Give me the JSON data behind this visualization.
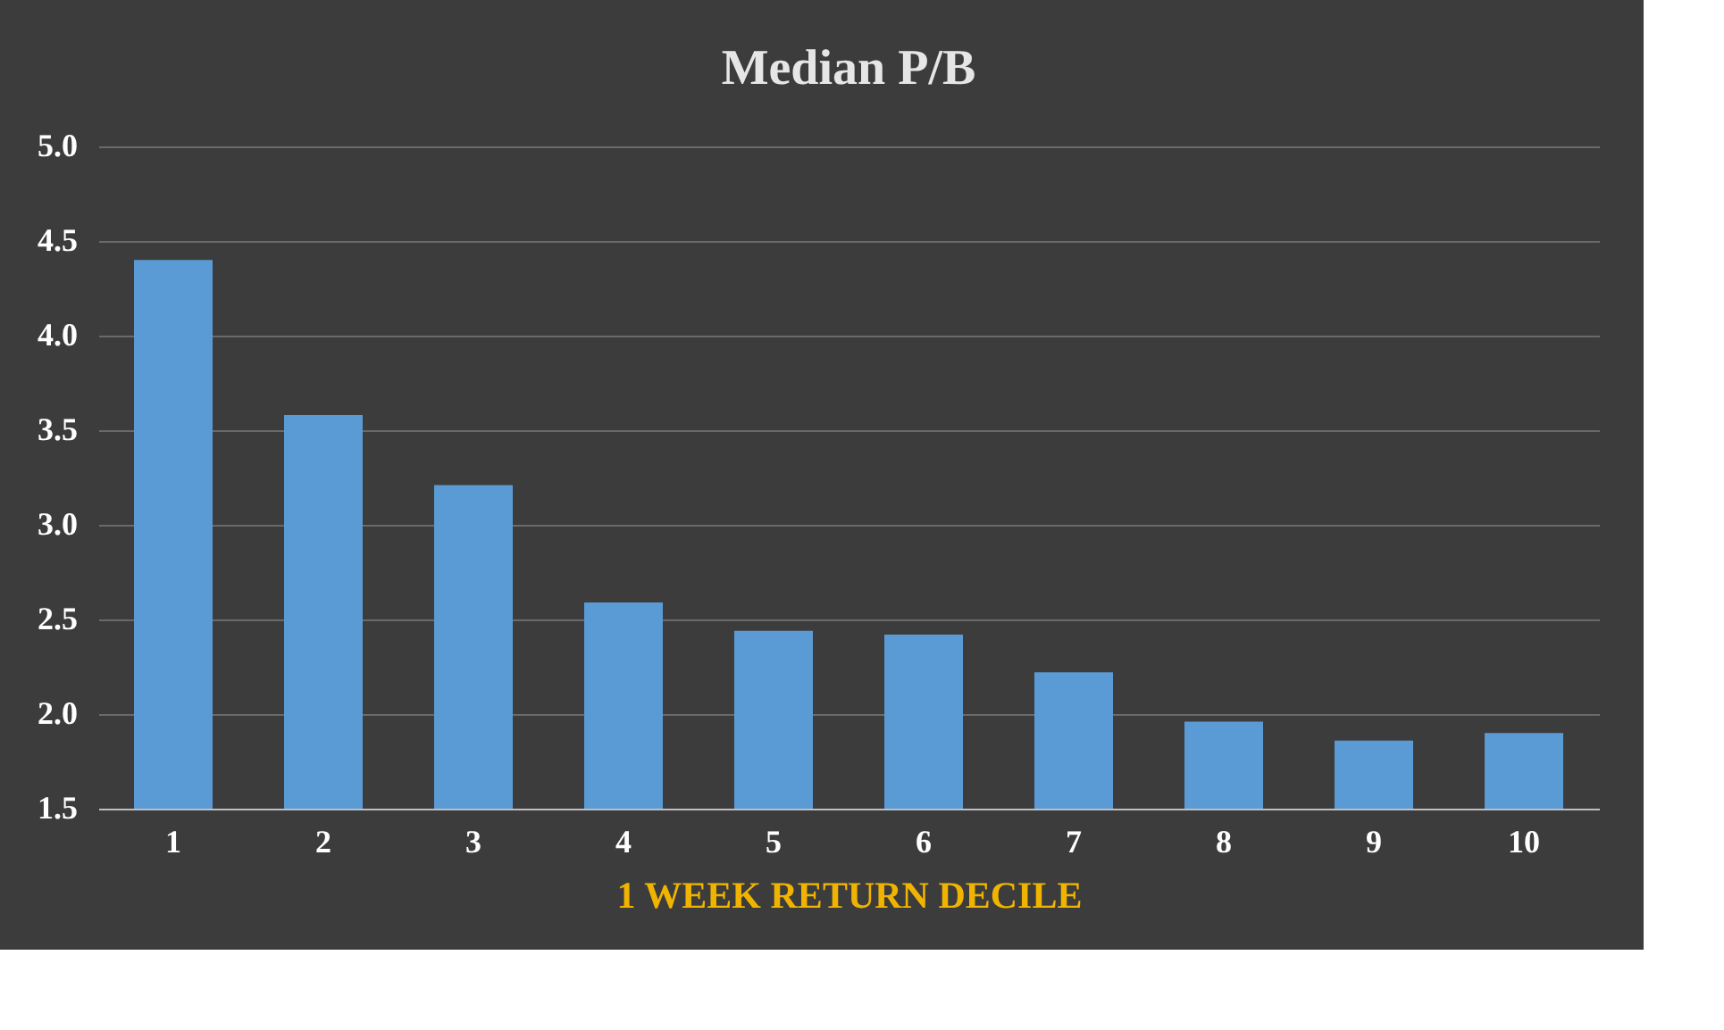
{
  "chart_data": {
    "type": "bar",
    "title": "Median P/B",
    "xlabel": "1 WEEK RETURN DECILE",
    "categories": [
      "1",
      "2",
      "3",
      "4",
      "5",
      "6",
      "7",
      "8",
      "9",
      "10"
    ],
    "values": [
      4.4,
      3.58,
      3.21,
      2.59,
      2.44,
      2.42,
      2.22,
      1.96,
      1.86,
      1.9
    ],
    "color": "#5b9bd5",
    "ylim": [
      1.5,
      5.0
    ],
    "yticks": [
      {
        "value": 1.5,
        "label": "1.5"
      },
      {
        "value": 2.0,
        "label": "2.0"
      },
      {
        "value": 2.5,
        "label": "2.5"
      },
      {
        "value": 3.0,
        "label": "3.0"
      },
      {
        "value": 3.5,
        "label": "3.5"
      },
      {
        "value": 4.0,
        "label": "4.0"
      },
      {
        "value": 4.5,
        "label": "4.5"
      },
      {
        "value": 5.0,
        "label": "5.0"
      }
    ],
    "grid": "y"
  }
}
